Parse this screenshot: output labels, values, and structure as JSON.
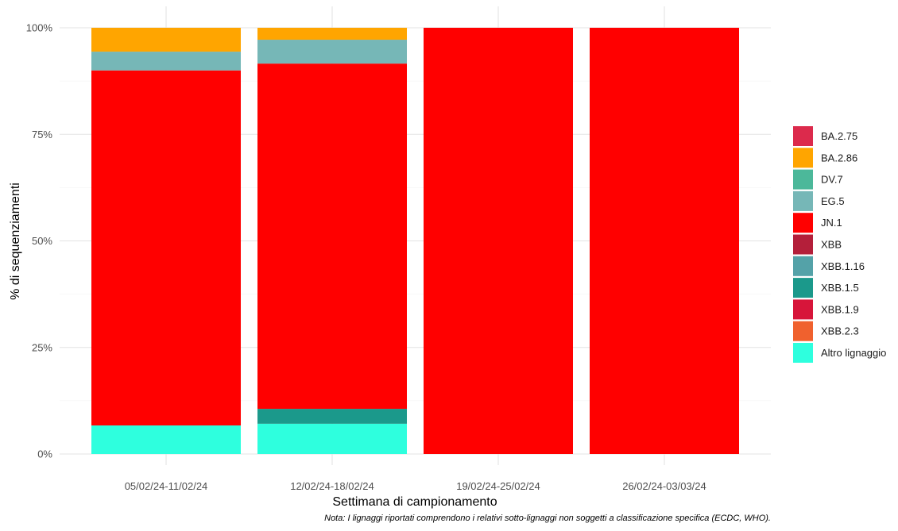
{
  "chart_data": {
    "type": "bar",
    "stacked": true,
    "ylabel": "% di sequenziamenti",
    "xlabel": "Settimana di campionamento",
    "caption": "Nota: I lignaggi riportati comprendono i relativi sotto-lignaggi non soggetti a classificazione specifica (ECDC, WHO).",
    "ylim": [
      0,
      100
    ],
    "yticks": [
      0,
      25,
      50,
      75,
      100
    ],
    "ytick_labels": [
      "0%",
      "25%",
      "50%",
      "75%",
      "100%"
    ],
    "grid": true,
    "legend_position": "right",
    "categories": [
      "05/02/24-11/02/24",
      "12/02/24-18/02/24",
      "19/02/24-25/02/24",
      "26/02/24-03/03/24"
    ],
    "series": [
      {
        "name": "BA.2.75",
        "color": "#DC2A4C",
        "values": [
          0,
          0,
          0,
          0
        ]
      },
      {
        "name": "BA.2.86",
        "color": "#FFA500",
        "values": [
          5.6,
          2.8,
          0,
          0
        ]
      },
      {
        "name": "DV.7",
        "color": "#4CB89A",
        "values": [
          0,
          0,
          0,
          0
        ]
      },
      {
        "name": "EG.5",
        "color": "#76B7B7",
        "values": [
          4.4,
          5.6,
          0,
          0
        ]
      },
      {
        "name": "JN.1",
        "color": "#FF0000",
        "values": [
          83.3,
          81.0,
          100,
          100
        ]
      },
      {
        "name": "XBB",
        "color": "#B41F3A",
        "values": [
          0,
          0,
          0,
          0
        ]
      },
      {
        "name": "XBB.1.16",
        "color": "#54A2A8",
        "values": [
          0,
          0,
          0,
          0
        ]
      },
      {
        "name": "XBB.1.5",
        "color": "#1B998B",
        "values": [
          0,
          3.5,
          0,
          0
        ]
      },
      {
        "name": "XBB.1.9",
        "color": "#D7153A",
        "values": [
          0,
          0,
          0,
          0
        ]
      },
      {
        "name": "XBB.2.3",
        "color": "#F0612E",
        "values": [
          0,
          0,
          0,
          0
        ]
      },
      {
        "name": "Altro lignaggio",
        "color": "#2EFFDE",
        "values": [
          6.7,
          7.1,
          0,
          0
        ]
      }
    ]
  }
}
